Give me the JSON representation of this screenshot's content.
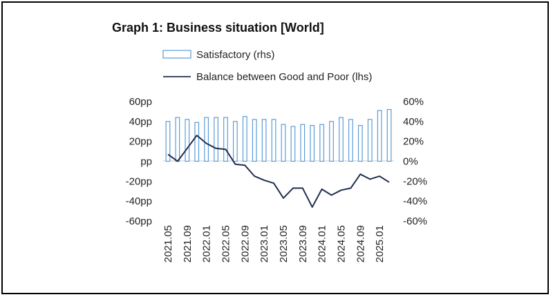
{
  "chart_data": {
    "type": "bar+line",
    "title": "Graph 1: Business situation [World]",
    "categories": [
      "2021.05",
      "2021.07",
      "2021.09",
      "2021.11",
      "2022.01",
      "2022.03",
      "2022.05",
      "2022.07",
      "2022.09",
      "2022.11",
      "2023.01",
      "2023.03",
      "2023.05",
      "2023.07",
      "2023.09",
      "2023.11",
      "2024.01",
      "2024.03",
      "2024.05",
      "2024.07",
      "2024.09",
      "2024.11",
      "2025.01",
      "2025.03"
    ],
    "x_tick_labels": [
      "2021.05",
      "2021.09",
      "2022.01",
      "2022.05",
      "2022.09",
      "2023.01",
      "2023.05",
      "2023.09",
      "2024.01",
      "2024.05",
      "2024.09",
      "2025.01"
    ],
    "series": [
      {
        "name": "Satisfactory (rhs)",
        "type": "bar",
        "axis": "right",
        "color": "#5b9bd5",
        "values": [
          40,
          44,
          42,
          39,
          44,
          44,
          44,
          40,
          45,
          42,
          42,
          42,
          37,
          35,
          37,
          36,
          37,
          40,
          44,
          42,
          36,
          42,
          51,
          52
        ]
      },
      {
        "name": "Balance between Good and Poor (lhs)",
        "type": "line",
        "axis": "left",
        "color": "#1f2d4f",
        "values": [
          7,
          0,
          13,
          26,
          18,
          13,
          12,
          -3,
          -4,
          -15,
          -19,
          -22,
          -37,
          -27,
          -27,
          -46,
          -28,
          -34,
          -29,
          -27,
          -13,
          -18,
          -15,
          -21
        ]
      }
    ],
    "left_axis": {
      "ylim": [
        -60,
        60
      ],
      "ticks": [
        "60pp",
        "40pp",
        "20pp",
        "pp",
        "-20pp",
        "-40pp",
        "-60pp"
      ]
    },
    "right_axis": {
      "ylim": [
        -60,
        60
      ],
      "ticks": [
        "60%",
        "40%",
        "20%",
        "0%",
        "-20%",
        "-40%",
        "-60%"
      ]
    },
    "legend_position": "top-left"
  }
}
